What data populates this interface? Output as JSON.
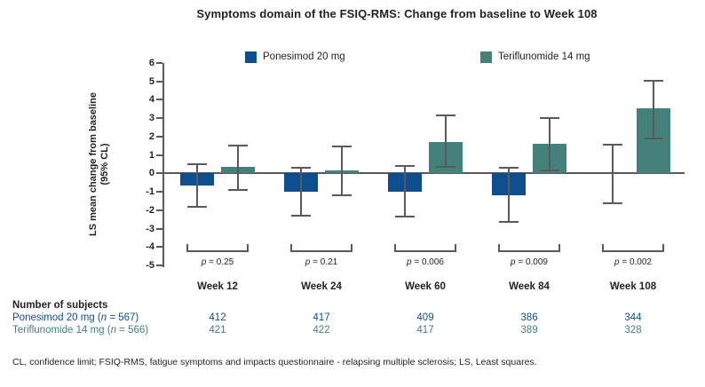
{
  "title": "Symptoms domain of the FSIQ-RMS: Change from baseline to Week 108",
  "colors": {
    "ponesimod": "#0f4e8e",
    "teriflunomide": "#44817a",
    "axis": "#58595b",
    "text": "#231f20"
  },
  "chart_data": {
    "type": "bar",
    "title": "Symptoms domain of the FSIQ-RMS: Change from baseline to Week 108",
    "categories": [
      "Week 12",
      "Week 24",
      "Week 60",
      "Week 84",
      "Week 108"
    ],
    "series": [
      {
        "name": "Ponesimod 20 mg",
        "color": "#0f4e8e",
        "values": [
          -0.65,
          -1.0,
          -1.0,
          -1.2,
          0.0
        ],
        "ci_low": [
          -1.8,
          -2.3,
          -2.35,
          -2.65,
          -1.6
        ],
        "ci_high": [
          0.5,
          0.3,
          0.4,
          0.3,
          1.55
        ]
      },
      {
        "name": "Teriflunomide 14 mg",
        "color": "#44817a",
        "values": [
          0.35,
          0.15,
          1.7,
          1.6,
          3.55
        ],
        "ci_low": [
          -0.9,
          -1.2,
          0.35,
          0.15,
          1.9
        ],
        "ci_high": [
          1.5,
          1.45,
          3.15,
          3.0,
          5.05
        ]
      }
    ],
    "p_values": [
      "p = 0.25",
      "p = 0.21",
      "p = 0.006",
      "p = 0.009",
      "p = 0.002"
    ],
    "ylabel_line1": "LS mean change from baseline",
    "ylabel_line2": "(95% CL)",
    "ylim": [
      -5,
      6
    ],
    "yticks": [
      6,
      5,
      4,
      3,
      2,
      1,
      0,
      -1,
      -2,
      -3,
      -4,
      -5
    ],
    "grid": "off",
    "legend_position": "top",
    "error_bars": "95% confidence limits"
  },
  "legend": [
    {
      "label": "Ponesimod 20 mg",
      "color": "#0f4e8e"
    },
    {
      "label": "Teriflunomide 14 mg",
      "color": "#44817a"
    }
  ],
  "subjects_table": {
    "header": "Number of subjects",
    "rows": [
      {
        "label": "Ponesimod 20 mg (n = 567)",
        "color": "#0f4e8e",
        "values": [
          "412",
          "417",
          "409",
          "386",
          "344"
        ]
      },
      {
        "label": "Teriflunomide 14 mg (n = 566)",
        "color": "#44817a",
        "values": [
          "421",
          "422",
          "417",
          "389",
          "328"
        ]
      }
    ]
  },
  "footnote": "CL, confidence limit; FSIQ-RMS, fatigue symptoms and impacts questionnaire - relapsing multiple sclerosis; LS, Least squares."
}
